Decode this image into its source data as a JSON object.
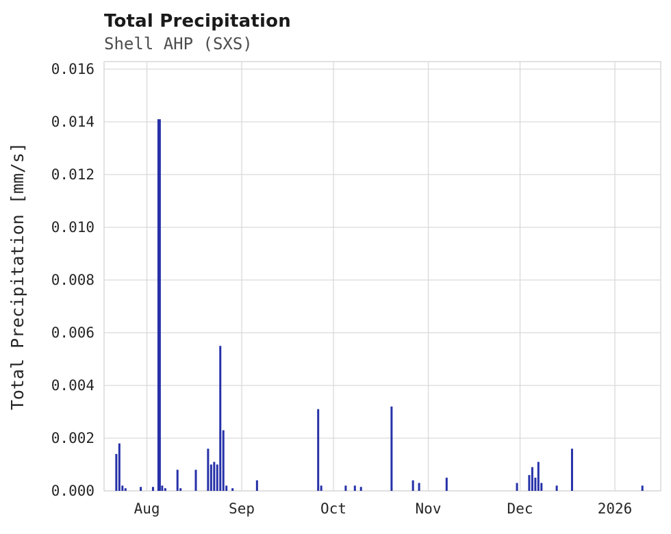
{
  "header": {
    "title": "Total Precipitation",
    "subtitle": "Shell AHP (SXS)"
  },
  "chart_data": {
    "type": "bar",
    "title": "Total Precipitation",
    "subtitle": "Shell AHP (SXS)",
    "xlabel": "",
    "ylabel": "Total Precipitation [mm/s]",
    "ylim": [
      0,
      0.016
    ],
    "grid": true,
    "legend": "none",
    "colors": {
      "bar": "#2631a8",
      "grid": "#d9d9d9",
      "border": "#d9d9d9",
      "tick_text": "#262626",
      "title_text": "#1a1a1a",
      "subtitle_text": "#4d4d4d"
    },
    "x_domain": [
      "2025-07-18",
      "2026-01-16"
    ],
    "yticks": [
      {
        "label": "0.000",
        "value": 0.0
      },
      {
        "label": "0.002",
        "value": 0.002
      },
      {
        "label": "0.004",
        "value": 0.004
      },
      {
        "label": "0.006",
        "value": 0.006
      },
      {
        "label": "0.008",
        "value": 0.008
      },
      {
        "label": "0.010",
        "value": 0.01
      },
      {
        "label": "0.012",
        "value": 0.012
      },
      {
        "label": "0.014",
        "value": 0.014
      },
      {
        "label": "0.016",
        "value": 0.016
      }
    ],
    "xticks": [
      {
        "label": "Aug",
        "date": "2025-08-01"
      },
      {
        "label": "Sep",
        "date": "2025-09-01"
      },
      {
        "label": "Oct",
        "date": "2025-10-01"
      },
      {
        "label": "Nov",
        "date": "2025-11-01"
      },
      {
        "label": "Dec",
        "date": "2025-12-01"
      },
      {
        "label": "2026",
        "date": "2026-01-01"
      }
    ],
    "series": [
      {
        "name": "Total Precipitation",
        "points": [
          {
            "date": "2025-07-22",
            "value": 0.0014
          },
          {
            "date": "2025-07-23",
            "value": 0.0018
          },
          {
            "date": "2025-07-24",
            "value": 0.0002
          },
          {
            "date": "2025-07-25",
            "value": 0.0001
          },
          {
            "date": "2025-07-30",
            "value": 0.00015
          },
          {
            "date": "2025-08-03",
            "value": 0.00015
          },
          {
            "date": "2025-08-05",
            "value": 0.0141
          },
          {
            "date": "2025-08-06",
            "value": 0.0002
          },
          {
            "date": "2025-08-07",
            "value": 0.0001
          },
          {
            "date": "2025-08-11",
            "value": 0.0008
          },
          {
            "date": "2025-08-12",
            "value": 0.0001
          },
          {
            "date": "2025-08-17",
            "value": 0.0008
          },
          {
            "date": "2025-08-21",
            "value": 0.0016
          },
          {
            "date": "2025-08-22",
            "value": 0.001
          },
          {
            "date": "2025-08-23",
            "value": 0.0011
          },
          {
            "date": "2025-08-24",
            "value": 0.001
          },
          {
            "date": "2025-08-25",
            "value": 0.0055
          },
          {
            "date": "2025-08-26",
            "value": 0.0023
          },
          {
            "date": "2025-08-27",
            "value": 0.0002
          },
          {
            "date": "2025-08-29",
            "value": 0.0001
          },
          {
            "date": "2025-09-06",
            "value": 0.0004
          },
          {
            "date": "2025-09-26",
            "value": 0.0031
          },
          {
            "date": "2025-09-27",
            "value": 0.0002
          },
          {
            "date": "2025-10-05",
            "value": 0.0002
          },
          {
            "date": "2025-10-08",
            "value": 0.0002
          },
          {
            "date": "2025-10-10",
            "value": 0.00015
          },
          {
            "date": "2025-10-20",
            "value": 0.0032
          },
          {
            "date": "2025-10-27",
            "value": 0.0004
          },
          {
            "date": "2025-10-29",
            "value": 0.0003
          },
          {
            "date": "2025-11-07",
            "value": 0.0005
          },
          {
            "date": "2025-11-30",
            "value": 0.0003
          },
          {
            "date": "2025-12-04",
            "value": 0.0006
          },
          {
            "date": "2025-12-05",
            "value": 0.0009
          },
          {
            "date": "2025-12-06",
            "value": 0.0005
          },
          {
            "date": "2025-12-07",
            "value": 0.0011
          },
          {
            "date": "2025-12-08",
            "value": 0.0003
          },
          {
            "date": "2025-12-13",
            "value": 0.0002
          },
          {
            "date": "2025-12-18",
            "value": 0.0016
          },
          {
            "date": "2026-01-10",
            "value": 0.0002
          }
        ]
      }
    ]
  }
}
